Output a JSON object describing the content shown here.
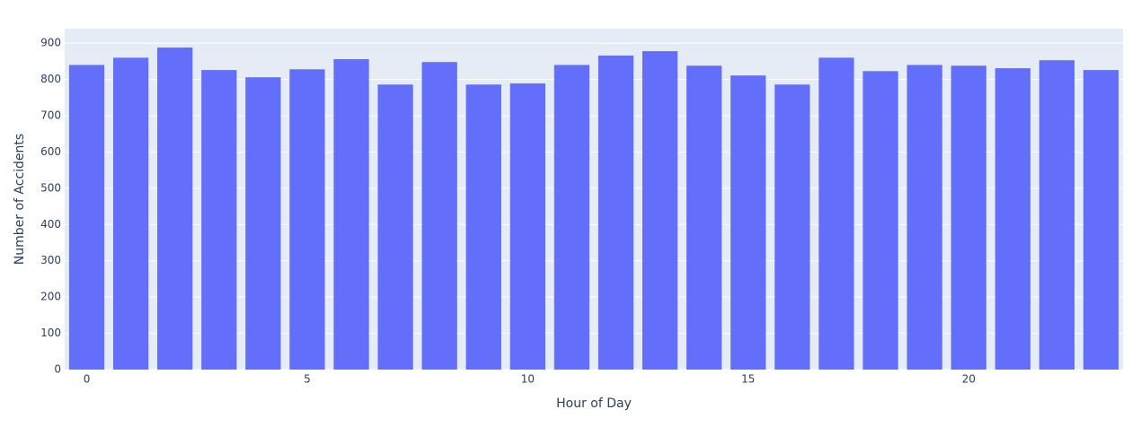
{
  "chart_data": {
    "type": "bar",
    "x_label": "Hour of Day",
    "y_label": "Number of Accidents",
    "x": [
      0,
      1,
      2,
      3,
      4,
      5,
      6,
      7,
      8,
      9,
      10,
      11,
      12,
      13,
      14,
      15,
      16,
      17,
      18,
      19,
      20,
      21,
      22,
      23
    ],
    "values": [
      840,
      860,
      888,
      826,
      806,
      828,
      856,
      786,
      848,
      786,
      789,
      840,
      866,
      878,
      838,
      811,
      786,
      860,
      823,
      840,
      838,
      831,
      853,
      826
    ],
    "color": "#636efa",
    "xlim": [
      -0.5,
      23.5
    ],
    "xticks": [
      0,
      5,
      10,
      15,
      20
    ],
    "ylim": [
      0,
      940
    ],
    "yticks": [
      0,
      100,
      200,
      300,
      400,
      500,
      600,
      700,
      800,
      900
    ],
    "grid": true
  }
}
